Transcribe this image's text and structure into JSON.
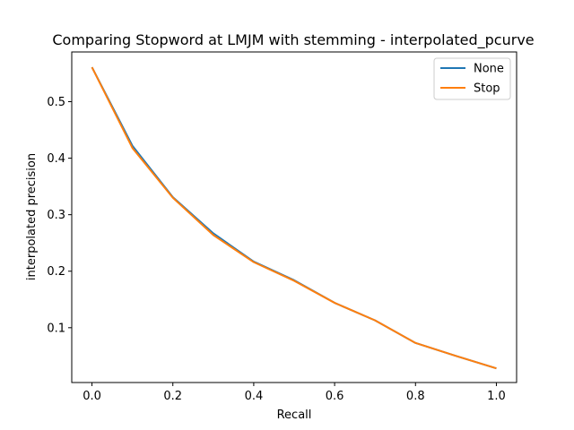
{
  "chart_data": {
    "type": "line",
    "title": "Comparing Stopword at LMJM with stemming - interpolated_pcurve",
    "xlabel": "Recall",
    "ylabel": "interpolated precision",
    "xlim": [
      -0.05,
      1.05
    ],
    "ylim": [
      0.003,
      0.588
    ],
    "xticks": [
      0.0,
      0.2,
      0.4,
      0.6,
      0.8,
      1.0
    ],
    "xtick_labels": [
      "0.0",
      "0.2",
      "0.4",
      "0.6",
      "0.8",
      "1.0"
    ],
    "yticks": [
      0.1,
      0.2,
      0.3,
      0.4,
      0.5
    ],
    "ytick_labels": [
      "0.1",
      "0.2",
      "0.3",
      "0.4",
      "0.5"
    ],
    "grid": false,
    "legend_position": "top-right",
    "x": [
      0.0,
      0.1,
      0.2,
      0.3,
      0.4,
      0.5,
      0.6,
      0.7,
      0.8,
      0.9,
      1.0
    ],
    "series": [
      {
        "name": "None",
        "color": "#1f77b4",
        "values": [
          0.561,
          0.422,
          0.331,
          0.267,
          0.217,
          0.184,
          0.144,
          0.113,
          0.073,
          0.05,
          0.028
        ]
      },
      {
        "name": "Stop",
        "color": "#ff7f0e",
        "values": [
          0.561,
          0.418,
          0.33,
          0.264,
          0.216,
          0.183,
          0.144,
          0.113,
          0.073,
          0.05,
          0.028
        ]
      }
    ]
  }
}
